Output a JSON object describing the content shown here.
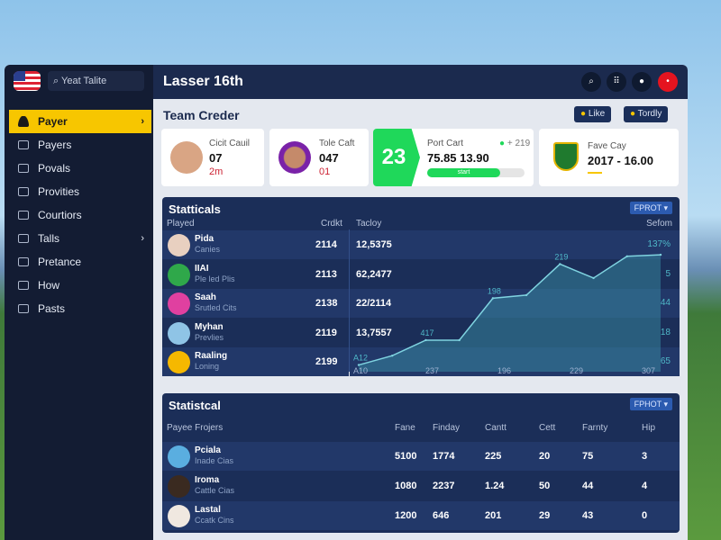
{
  "sidebar": {
    "search_placeholder": "Yeat Talite",
    "items": [
      {
        "label": "Payer",
        "active": true,
        "chevron": true
      },
      {
        "label": "Payers"
      },
      {
        "label": "Povals"
      },
      {
        "label": "Provities"
      },
      {
        "label": "Courtiors"
      },
      {
        "label": "Talls",
        "chevron": true
      },
      {
        "label": "Pretance"
      },
      {
        "label": "How"
      },
      {
        "label": "Pasts"
      }
    ]
  },
  "header": {
    "title": "Lasser 16th",
    "icons": [
      "search-icon",
      "grid-icon",
      "user-icon",
      "notification-icon"
    ]
  },
  "team": {
    "title": "Team Creder",
    "like_label": "Like",
    "tordly_label": "Tordly",
    "cards": [
      {
        "title": "Cicit Cauil",
        "value": "07",
        "sub": "2m"
      },
      {
        "title": "Tole Caft",
        "value": "047",
        "sub": "01"
      },
      {
        "badge": "23",
        "title": "Port Cart",
        "delta": "+ 219",
        "value": "75.85 13.90",
        "progress_label": "start",
        "progress": 0.75
      },
      {
        "title": "Fave Cay",
        "value": "2017 - 16.00",
        "crest": "IIIS"
      }
    ]
  },
  "stats1": {
    "title": "Statticals",
    "dropdown": "FPROT",
    "col_player": "Played",
    "col_credit": "Crdkt",
    "col_today": "Tacloy",
    "col_right": "Sefom",
    "rows": [
      {
        "name": "Pida",
        "sub": "Canies",
        "credit": "2114",
        "today": "12,5375",
        "right": "137%"
      },
      {
        "name": "IIAI",
        "sub": "Ple led Plis",
        "credit": "2113",
        "today": "62,2477",
        "right": "5"
      },
      {
        "name": "Saah",
        "sub": "Srutled Cits",
        "credit": "2138",
        "today": "22/2114",
        "right": "44"
      },
      {
        "name": "Myhan",
        "sub": "Prevlies",
        "credit": "2119",
        "today": "13,7557",
        "right": "18"
      },
      {
        "name": "Raaling",
        "sub": "Loning",
        "credit": "2199",
        "today": "",
        "right": "65"
      }
    ]
  },
  "chart_data": {
    "type": "area",
    "x_labels": [
      "A10",
      "237",
      "196",
      "229",
      "307"
    ],
    "values": [
      2,
      8,
      18,
      18,
      45,
      47,
      67,
      58,
      72,
      73
    ],
    "point_labels": [
      {
        "index": 0,
        "label": "A12"
      },
      {
        "index": 2,
        "label": "417"
      },
      {
        "index": 4,
        "label": "198"
      },
      {
        "index": 6,
        "label": "219"
      }
    ],
    "color": "#4fb8c8"
  },
  "stats2": {
    "title": "Statistcal",
    "dropdown": "FPHOT",
    "headers": [
      "Payee Frojers",
      "Fane",
      "Finday",
      "Cantt",
      "Cett",
      "Farnty",
      "Hip"
    ],
    "rows": [
      {
        "name": "Pciala",
        "sub": "Inade Cias",
        "values": [
          "5100",
          "1774",
          "225",
          "20",
          "75",
          "3"
        ]
      },
      {
        "name": "Iroma",
        "sub": "Cattle Cias",
        "values": [
          "1080",
          "2237",
          "1.24",
          "50",
          "44",
          "4"
        ]
      },
      {
        "name": "Lastal",
        "sub": "Ccatk Cins",
        "values": [
          "1200",
          "646",
          "201",
          "29",
          "43",
          "0"
        ]
      }
    ]
  }
}
